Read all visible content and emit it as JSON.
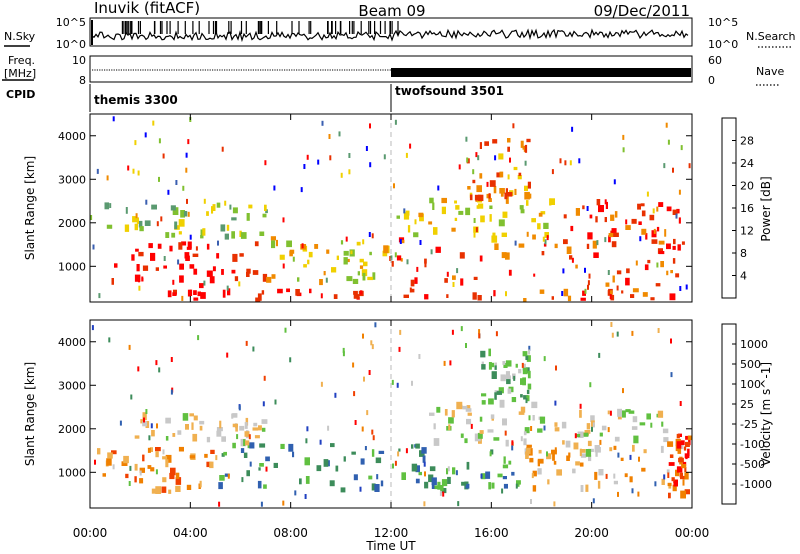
{
  "header": {
    "station": "Inuvik (fitACF)",
    "beam": "Beam 09",
    "date": "09/Dec/2011"
  },
  "strip_panels": {
    "nsky_label": "N.Sky",
    "nsearch_label": "N.Search",
    "noise_ticks_left": [
      "10^5",
      "10^0"
    ],
    "noise_ticks_right": [
      "10^5",
      "10^0"
    ],
    "freq_label": "Freq.",
    "freq_unit": "[MHz]",
    "freq_ticks": [
      "10",
      "8"
    ],
    "nave_label": "Nave",
    "nave_ticks": [
      "60",
      "0"
    ],
    "cpid_label": "CPID",
    "cpid_segments": [
      {
        "name": "themis 3300",
        "start_hour": 0,
        "end_hour": 12
      },
      {
        "name": "twofsound 3501",
        "start_hour": 12,
        "end_hour": 24
      }
    ]
  },
  "chart_data": [
    {
      "type": "heatmap",
      "ylabel": "Slant Range [km]",
      "xlabel": "Time UT",
      "x_ticks": [
        "00:00",
        "04:00",
        "08:00",
        "12:00",
        "16:00",
        "20:00",
        "00:00"
      ],
      "x_range_hours": [
        0,
        24
      ],
      "y_ticks": [
        "1000",
        "2000",
        "3000",
        "4000"
      ],
      "ylim": [
        180,
        4500
      ],
      "colorbar": {
        "title": "Power [dB]",
        "ticks": [
          "4",
          "8",
          "12",
          "16",
          "20",
          "24",
          "28"
        ],
        "colors": [
          "#0000ff",
          "#3a5fb0",
          "#5a9a70",
          "#80c030",
          "#f0d000",
          "#f08a00",
          "#e83000",
          "#ff0000"
        ]
      },
      "regions": [
        {
          "t": [
            0.2,
            7.0
          ],
          "r": [
            600,
            1600
          ],
          "level": 7
        },
        {
          "t": [
            7.0,
            11.8
          ],
          "r": [
            650,
            1700
          ],
          "level": 4
        },
        {
          "t": [
            0.5,
            7.0
          ],
          "r": [
            1700,
            2500
          ],
          "level": 3
        },
        {
          "t": [
            12.0,
            24.0
          ],
          "r": [
            600,
            1700
          ],
          "level": 6
        },
        {
          "t": [
            12.2,
            18.5
          ],
          "r": [
            1700,
            2600
          ],
          "level": 4
        },
        {
          "t": [
            15.0,
            17.5
          ],
          "r": [
            2600,
            4000
          ],
          "level": 5
        },
        {
          "t": [
            18.5,
            23.5
          ],
          "r": [
            1500,
            2600
          ],
          "level": 6
        },
        {
          "t": [
            3.0,
            11.0
          ],
          "r": [
            200,
            500
          ],
          "level": 7
        },
        {
          "t": [
            12.3,
            23.8
          ],
          "r": [
            200,
            500
          ],
          "level": 6
        }
      ]
    },
    {
      "type": "heatmap",
      "ylabel": "Slant Range [km]",
      "xlabel": "Time UT",
      "x_ticks": [
        "00:00",
        "04:00",
        "08:00",
        "12:00",
        "16:00",
        "20:00",
        "00:00"
      ],
      "x_range_hours": [
        0,
        24
      ],
      "y_ticks": [
        "1000",
        "2000",
        "3000",
        "4000"
      ],
      "ylim": [
        180,
        4500
      ],
      "colorbar": {
        "title": "Velocity [m s^-1]",
        "ticks": [
          "-1000",
          "-500",
          "-100",
          "-25",
          "25",
          "100",
          "500",
          "1000"
        ],
        "colors": [
          "#ff0000",
          "#f04000",
          "#f08000",
          "#f0b050",
          "#c8c8c8",
          "#60c040",
          "#3c8c5a",
          "#3060b0",
          "#2040c0"
        ]
      },
      "regions": [
        {
          "t": [
            0.2,
            5.0
          ],
          "r": [
            600,
            1600
          ],
          "level": 2
        },
        {
          "t": [
            5.0,
            11.8
          ],
          "r": [
            650,
            1700
          ],
          "level": 6
        },
        {
          "t": [
            1.5,
            7.0
          ],
          "r": [
            1700,
            2400
          ],
          "level": 4
        },
        {
          "t": [
            12.0,
            17.0
          ],
          "r": [
            600,
            1700
          ],
          "level": 6
        },
        {
          "t": [
            13.5,
            18.0
          ],
          "r": [
            1700,
            2700
          ],
          "level": 4
        },
        {
          "t": [
            15.5,
            17.5
          ],
          "r": [
            2700,
            3900
          ],
          "level": 5
        },
        {
          "t": [
            17.0,
            23.5
          ],
          "r": [
            700,
            1700
          ],
          "level": 3
        },
        {
          "t": [
            18.5,
            23.0
          ],
          "r": [
            1500,
            2500
          ],
          "level": 4
        },
        {
          "t": [
            23.0,
            24.0
          ],
          "r": [
            500,
            2200
          ],
          "level": 1
        }
      ]
    }
  ]
}
